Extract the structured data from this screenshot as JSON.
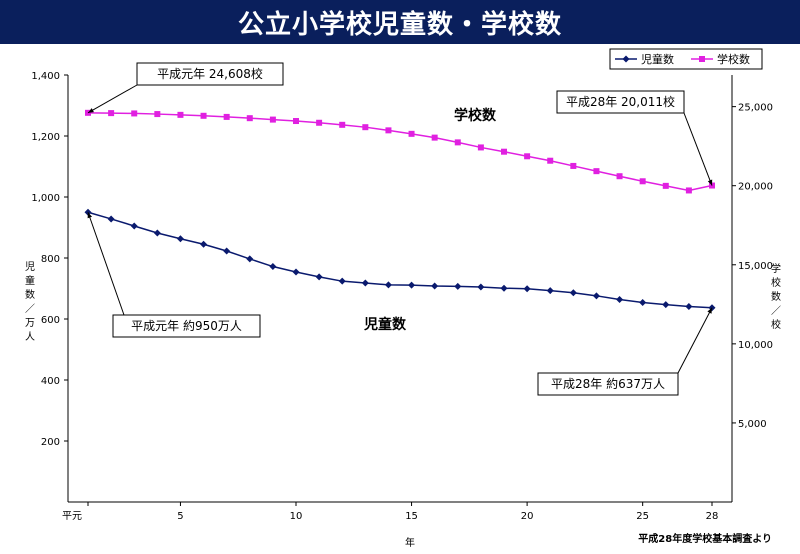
{
  "title": "公立小学校児童数・学校数",
  "source": "平成28年度学校基本調査より",
  "chart_data": {
    "type": "line",
    "title": "公立小学校児童数・学校数",
    "x": [
      1,
      2,
      3,
      4,
      5,
      6,
      7,
      8,
      9,
      10,
      11,
      12,
      13,
      14,
      15,
      16,
      17,
      18,
      19,
      20,
      21,
      22,
      23,
      24,
      25,
      26,
      27,
      28
    ],
    "xlabel": "年",
    "x_ticks": [
      {
        "value": 1,
        "label": "平元"
      },
      {
        "value": 5,
        "label": "5"
      },
      {
        "value": 10,
        "label": "10"
      },
      {
        "value": 15,
        "label": "15"
      },
      {
        "value": 20,
        "label": "20"
      },
      {
        "value": 25,
        "label": "25"
      },
      {
        "value": 28,
        "label": "28"
      }
    ],
    "xlim": [
      1,
      28
    ],
    "y_left": {
      "label_chars": [
        "児",
        "童",
        "数",
        "／",
        "万",
        "人"
      ],
      "lim": [
        0,
        1400
      ],
      "ticks": [
        200,
        400,
        600,
        800,
        1000,
        1200,
        1400
      ],
      "tick_labels": [
        "200",
        "400",
        "600",
        "800",
        "1,000",
        "1,200",
        "1,400"
      ]
    },
    "y_right": {
      "label_chars": [
        "学",
        "校",
        "数",
        "／",
        "校"
      ],
      "lim": [
        0,
        27000
      ],
      "ticks": [
        5000,
        10000,
        15000,
        20000,
        25000
      ],
      "tick_labels": [
        "5,000",
        "10,000",
        "15,000",
        "20,000",
        "25,000"
      ]
    },
    "legend_position": "top-right",
    "grid": false,
    "series": [
      {
        "name": "児童数",
        "axis": "left",
        "color": "#0a1a6e",
        "marker": "diamond",
        "label": "児童数",
        "values": [
          950,
          928,
          905,
          882,
          863,
          845,
          823,
          797,
          772,
          754,
          738,
          724,
          718,
          712,
          711,
          708,
          707,
          705,
          701,
          699,
          693,
          686,
          676,
          664,
          654,
          647,
          641,
          637
        ]
      },
      {
        "name": "学校数",
        "axis": "right",
        "color": "#e020e0",
        "marker": "square",
        "label": "学校数",
        "values": [
          24608,
          24590,
          24570,
          24530,
          24480,
          24420,
          24350,
          24270,
          24180,
          24090,
          23980,
          23850,
          23700,
          23500,
          23280,
          23040,
          22740,
          22420,
          22150,
          21860,
          21580,
          21250,
          20920,
          20600,
          20280,
          19990,
          19700,
          20011
        ]
      }
    ],
    "annotations": [
      {
        "text": "平成元年  24,608校",
        "series": 1,
        "point": 0
      },
      {
        "text": "平成28年 20,011校",
        "series": 1,
        "point": 27
      },
      {
        "text": "平成元年  約950万人",
        "series": 0,
        "point": 0
      },
      {
        "text": "平成28年  約637万人",
        "series": 0,
        "point": 27
      }
    ]
  }
}
